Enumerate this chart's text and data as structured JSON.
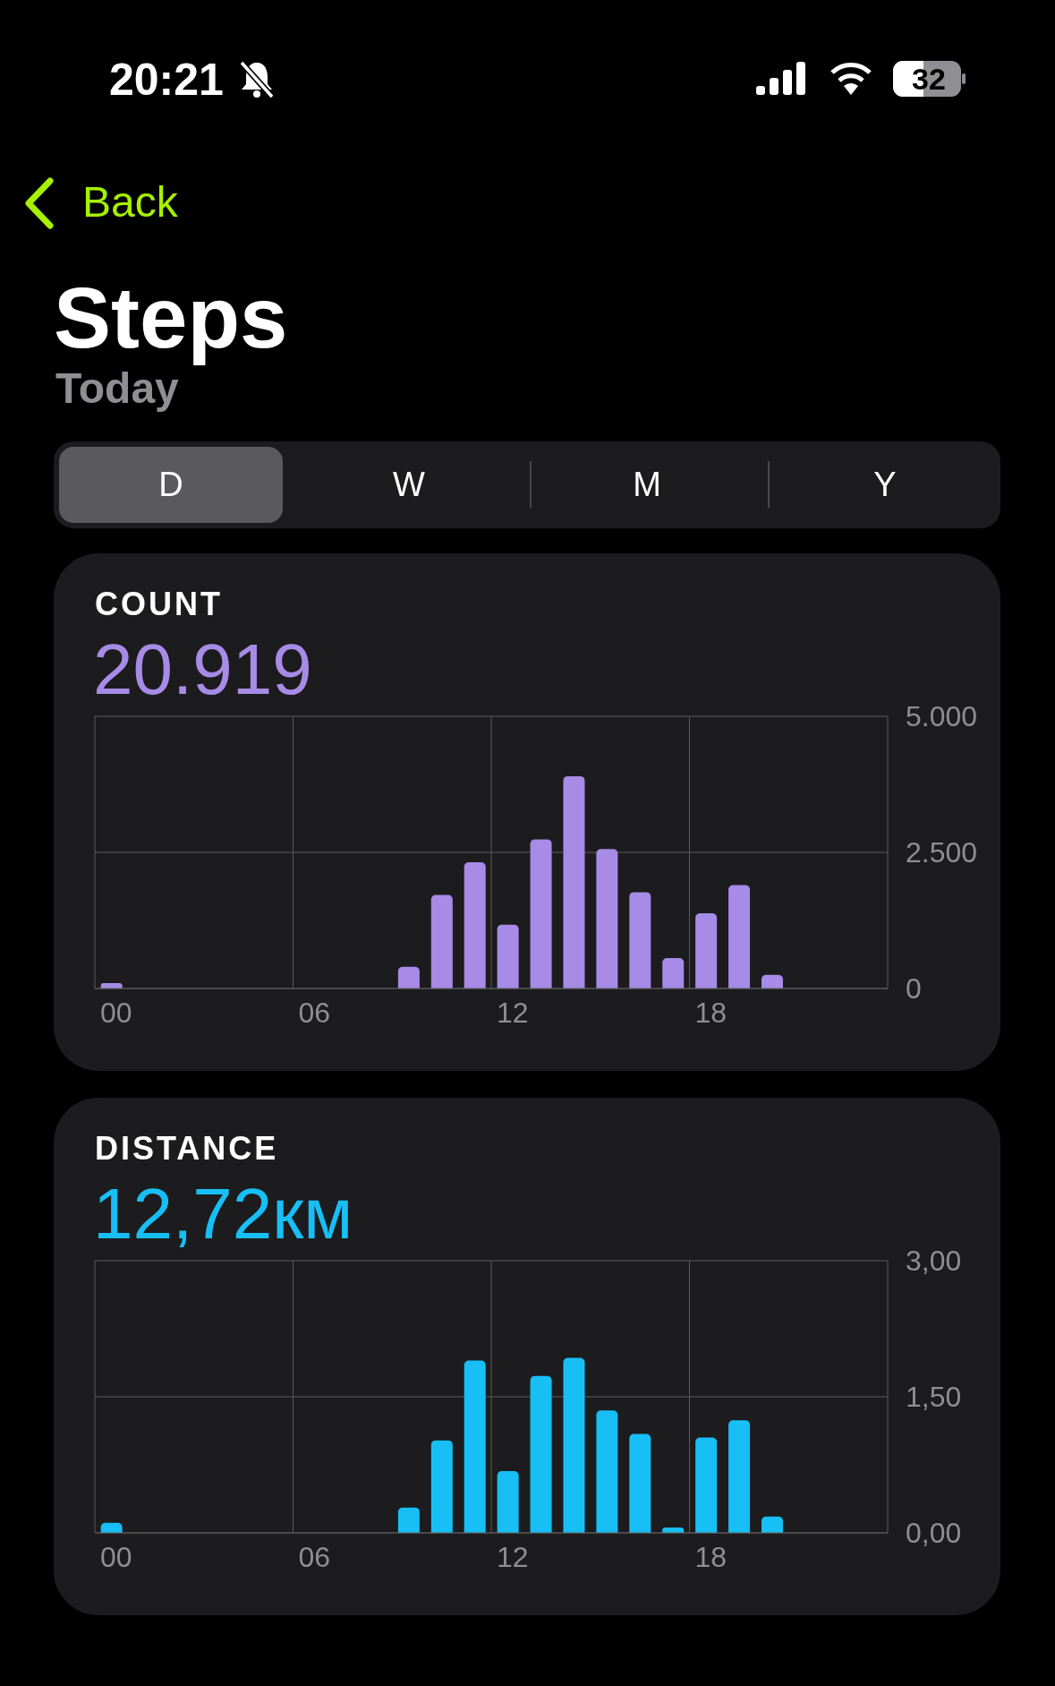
{
  "chart_data": [
    {
      "type": "bar",
      "title": "COUNT",
      "subtitle": "20.919",
      "annotations": [
        "20:21",
        "32",
        "Back",
        "Steps",
        "Today",
        "D",
        "W",
        "M",
        "Y"
      ],
      "categories": [
        "00",
        null,
        null,
        null,
        null,
        null,
        "06",
        null,
        null,
        null,
        null,
        null,
        "12",
        null,
        null,
        null,
        null,
        null,
        "18",
        null,
        null,
        null,
        null,
        null
      ],
      "values": [
        100,
        0,
        0,
        0,
        0,
        0,
        0,
        0,
        0,
        400,
        1720,
        2320,
        1170,
        2740,
        3900,
        2560,
        1770,
        560,
        1380,
        1900,
        250,
        0,
        0,
        0
      ],
      "color": "#a78be6",
      "ylim": [
        0,
        5000
      ],
      "yticks": [
        {
          "value": 0,
          "label": "0"
        },
        {
          "value": 2500,
          "label": "2.500"
        },
        {
          "value": 5000,
          "label": "5.000"
        }
      ],
      "grid": true
    },
    {
      "type": "bar",
      "title": "DISTANCE",
      "subtitle": "12,72км",
      "categories": [
        "00",
        null,
        null,
        null,
        null,
        null,
        "06",
        null,
        null,
        null,
        null,
        null,
        "12",
        null,
        null,
        null,
        null,
        null,
        "18",
        null,
        null,
        null,
        null,
        null
      ],
      "values": [
        0.11,
        0,
        0,
        0,
        0,
        0,
        0,
        0,
        0,
        0.28,
        1.02,
        1.9,
        0.68,
        1.73,
        1.93,
        1.35,
        1.09,
        0.06,
        1.05,
        1.24,
        0.18,
        0,
        0,
        0
      ],
      "color": "#17bff5",
      "ylim": [
        0,
        3
      ],
      "yticks": [
        {
          "value": 0,
          "label": "0,00"
        },
        {
          "value": 1.5,
          "label": "1,50"
        },
        {
          "value": 3,
          "label": "3,00"
        }
      ],
      "grid": true
    }
  ]
}
